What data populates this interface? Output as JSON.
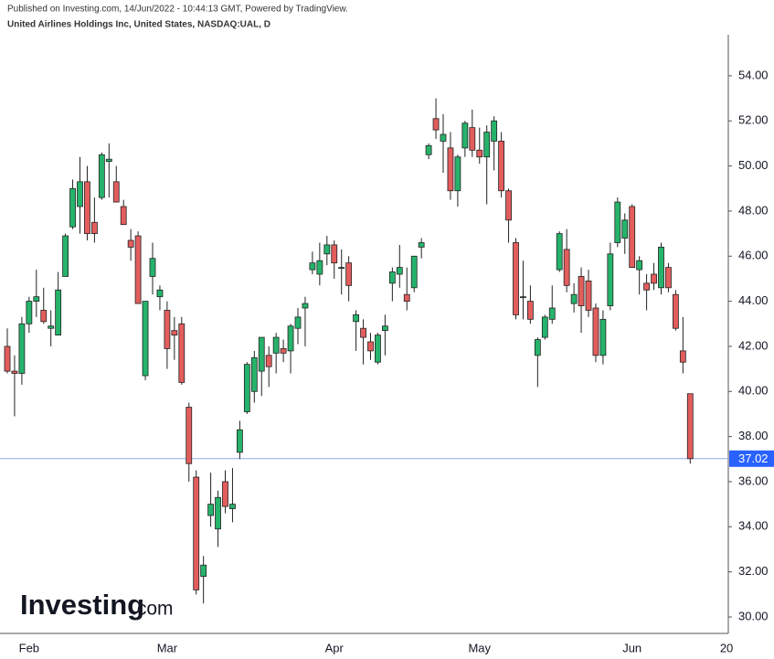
{
  "header": {
    "published": "Published on Investing.com, 14/Jun/2022 - 10:44:13 GMT, Powered by TradingView.",
    "symbol": "United Airlines Holdings Inc, United States, NASDAQ:UAL, D"
  },
  "watermark": {
    "brand": "Investing",
    "suffix": ".com"
  },
  "chart_data": {
    "type": "candlestick",
    "up_color": "#26b36b",
    "down_color": "#e35d5d",
    "last_price_color": "#2962ff",
    "categories": [
      null,
      null,
      null,
      "Feb",
      null,
      null,
      null,
      null,
      null,
      null,
      null,
      null,
      null,
      null,
      null,
      null,
      null,
      null,
      null,
      null,
      null,
      null,
      "Mar",
      null,
      null,
      null,
      null,
      null,
      null,
      null,
      null,
      null,
      null,
      null,
      null,
      null,
      null,
      null,
      null,
      null,
      null,
      null,
      null,
      null,
      null,
      "Apr",
      null,
      null,
      null,
      null,
      null,
      null,
      null,
      null,
      null,
      null,
      null,
      null,
      null,
      null,
      null,
      null,
      null,
      null,
      null,
      "May",
      null,
      null,
      null,
      null,
      null,
      null,
      null,
      null,
      null,
      null,
      null,
      null,
      null,
      null,
      null,
      null,
      null,
      null,
      null,
      null,
      "Jun",
      null,
      null,
      null,
      null,
      null,
      null,
      null,
      null,
      null,
      null,
      null,
      null,
      "20"
    ],
    "open": [
      42.0,
      40.9,
      40.8,
      43.0,
      44.0,
      43.6,
      42.8,
      42.5,
      45.1,
      47.3,
      48.2,
      49.3,
      47.5,
      48.6,
      50.2,
      49.3,
      48.2,
      46.7,
      46.9,
      40.7,
      45.1,
      44.2,
      43.6,
      42.7,
      43.0,
      39.3,
      36.2,
      31.8,
      34.5,
      33.9,
      36.0,
      34.8,
      37.3,
      39.1,
      40.0,
      40.9,
      41.6,
      41.7,
      41.9,
      41.8,
      42.8,
      43.7,
      45.4,
      45.2,
      46.1,
      46.5,
      45.5,
      45.7,
      43.1,
      42.8,
      42.2,
      41.3,
      42.7,
      44.8,
      45.2,
      44.3,
      44.6,
      46.4,
      50.5,
      52.1,
      51.1,
      50.8,
      48.9,
      50.8,
      51.7,
      50.7,
      50.4,
      51.1,
      51.1,
      48.9,
      46.6,
      44.2,
      44.0,
      41.6,
      42.4,
      43.2,
      45.4,
      46.3,
      43.9,
      45.1,
      44.9,
      43.7,
      41.6,
      43.8,
      46.6,
      46.8,
      48.2,
      45.4,
      44.8,
      45.2,
      44.6,
      45.5,
      44.3,
      41.8,
      39.9,
      null,
      null,
      null,
      null,
      null
    ],
    "high": [
      42.8,
      41.6,
      43.3,
      44.2,
      45.4,
      44.6,
      43.6,
      45.3,
      47.0,
      49.4,
      50.4,
      50.0,
      48.6,
      50.6,
      51.0,
      50.0,
      48.5,
      47.2,
      47.1,
      44.0,
      46.6,
      44.7,
      44.0,
      43.3,
      43.3,
      39.5,
      36.5,
      32.7,
      36.4,
      35.6,
      36.5,
      36.6,
      38.7,
      41.3,
      41.8,
      42.4,
      42.0,
      42.6,
      42.3,
      43.0,
      43.7,
      44.2,
      46.2,
      46.6,
      46.9,
      46.7,
      46.3,
      46.0,
      43.6,
      43.2,
      42.6,
      42.6,
      43.4,
      45.5,
      46.5,
      45.5,
      46.0,
      46.8,
      51.0,
      53.0,
      52.3,
      51.5,
      50.5,
      52.0,
      52.5,
      51.7,
      51.8,
      52.2,
      51.5,
      49.0,
      46.8,
      45.8,
      44.7,
      42.4,
      43.4,
      44.7,
      47.1,
      47.2,
      44.8,
      45.5,
      45.4,
      43.9,
      43.6,
      46.6,
      48.6,
      47.9,
      48.3,
      46.0,
      45.2,
      45.7,
      46.6,
      45.7,
      44.5,
      43.3,
      39.9,
      null,
      null,
      null,
      null,
      null
    ],
    "low": [
      40.8,
      38.9,
      40.3,
      42.6,
      43.3,
      43.0,
      42.0,
      42.5,
      45.1,
      47.2,
      47.0,
      46.7,
      46.6,
      48.5,
      48.6,
      48.4,
      47.4,
      45.8,
      43.9,
      40.5,
      44.3,
      43.6,
      41.0,
      41.4,
      40.3,
      36.0,
      31.0,
      30.6,
      34.0,
      33.1,
      34.6,
      34.2,
      37.0,
      39.0,
      39.5,
      39.8,
      40.2,
      40.8,
      41.3,
      40.8,
      42.1,
      42.0,
      45.2,
      44.7,
      45.6,
      45.0,
      44.3,
      44.0,
      41.8,
      41.2,
      41.4,
      41.2,
      41.6,
      44.0,
      44.6,
      43.6,
      44.4,
      45.9,
      50.3,
      51.2,
      49.7,
      48.5,
      48.2,
      50.4,
      50.4,
      50.1,
      48.3,
      49.8,
      48.6,
      46.6,
      43.2,
      43.2,
      43.0,
      40.2,
      42.3,
      43.0,
      45.3,
      44.4,
      43.5,
      42.6,
      43.3,
      41.3,
      41.2,
      43.6,
      46.4,
      46.1,
      45.5,
      44.3,
      43.6,
      44.5,
      44.3,
      44.4,
      42.7,
      40.8,
      36.8,
      null,
      null,
      null,
      null,
      null
    ],
    "close": [
      40.9,
      40.8,
      43.0,
      44.0,
      44.2,
      43.1,
      42.9,
      44.5,
      46.9,
      49.0,
      49.3,
      47.0,
      47.0,
      50.5,
      50.3,
      48.4,
      47.4,
      46.4,
      43.9,
      44.0,
      45.9,
      44.5,
      41.9,
      42.5,
      40.4,
      36.8,
      31.2,
      32.3,
      35.0,
      35.3,
      34.9,
      35.0,
      38.3,
      41.2,
      41.5,
      42.4,
      41.1,
      42.4,
      41.7,
      42.9,
      43.3,
      43.9,
      45.7,
      45.8,
      46.5,
      45.7,
      45.5,
      44.7,
      43.4,
      42.4,
      41.8,
      42.5,
      42.9,
      45.3,
      45.5,
      44.0,
      46.0,
      46.6,
      50.9,
      51.6,
      51.4,
      48.9,
      50.4,
      51.9,
      50.7,
      50.4,
      51.5,
      52.0,
      48.9,
      47.6,
      43.4,
      44.2,
      43.2,
      42.3,
      43.3,
      43.7,
      47.0,
      44.7,
      44.3,
      43.8,
      43.6,
      41.6,
      43.2,
      46.1,
      48.4,
      47.6,
      45.5,
      45.8,
      44.5,
      44.8,
      46.4,
      44.6,
      42.8,
      41.3,
      37.02,
      null,
      null,
      null,
      null,
      null
    ],
    "ylim": [
      29.27,
      55.82
    ],
    "yticks": [
      {
        "value": 30,
        "label": "30.00"
      },
      {
        "value": 32,
        "label": "32.00"
      },
      {
        "value": 34,
        "label": "34.00"
      },
      {
        "value": 36,
        "label": "36.00"
      },
      {
        "value": 38,
        "label": "38.00"
      },
      {
        "value": 40,
        "label": "40.00"
      },
      {
        "value": 42,
        "label": "42.00"
      },
      {
        "value": 44,
        "label": "44.00"
      },
      {
        "value": 46,
        "label": "46.00"
      },
      {
        "value": 48,
        "label": "48.00"
      },
      {
        "value": 50,
        "label": "50.00"
      },
      {
        "value": 52,
        "label": "52.00"
      },
      {
        "value": 54,
        "label": "54.00"
      }
    ],
    "grid": false
  }
}
